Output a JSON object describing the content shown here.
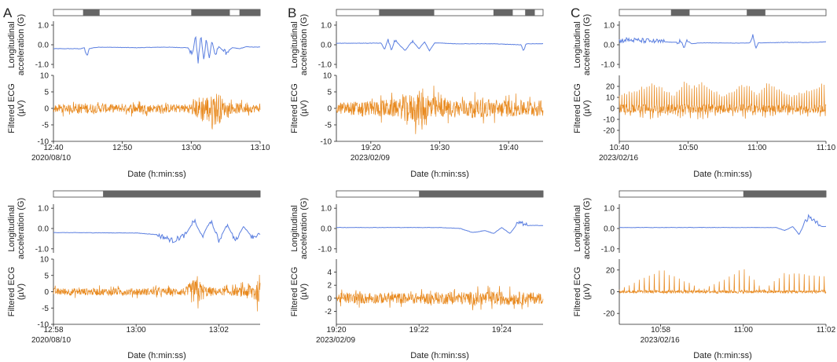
{
  "figure": {
    "panel_labels": [
      "A",
      "B",
      "C"
    ],
    "xlabel": "Date (h:min:ss)",
    "acc_ylabel": [
      "Longitudinal",
      "acceleration (G)"
    ],
    "ecg_ylabel": [
      "Filtered ECG",
      "(µV)"
    ]
  },
  "colors": {
    "acceleration": "#5b7fe0",
    "ecg": "#e8891e",
    "activity_bar": "#666666",
    "axis": "#222222"
  },
  "chart_data": [
    {
      "type": "line",
      "panel": "A",
      "row": "top",
      "title": "",
      "date": "2020/08/10",
      "x_range_min": [
        760,
        790
      ],
      "x_ticks": [
        {
          "value": 760,
          "label": "12:40"
        },
        {
          "value": 770,
          "label": "12:50"
        },
        {
          "value": 780,
          "label": "13:00"
        },
        {
          "value": 790,
          "label": "13:10"
        }
      ],
      "activity_bar": [
        [
          764.3,
          766.7
        ],
        [
          780,
          785.6
        ],
        [
          787,
          790
        ]
      ],
      "acc_ylim": [
        -1.2,
        1.2
      ],
      "acc_yticks": [
        {
          "value": 1,
          "label": "1.0"
        },
        {
          "value": 0,
          "label": "0.0"
        },
        {
          "value": -1,
          "label": "-1.0"
        }
      ],
      "ecg_ylim": [
        -10,
        10
      ],
      "ecg_yticks": [
        {
          "value": 10,
          "label": "10"
        },
        {
          "value": 5,
          "label": "5"
        },
        {
          "value": 0,
          "label": "0"
        },
        {
          "value": -5,
          "label": "-5"
        },
        {
          "value": -10,
          "label": "-10"
        }
      ],
      "series": [
        {
          "name": "Longitudinal acceleration (G)",
          "axis": "acc",
          "x": [
            760,
            764,
            764.5,
            764.8,
            765.2,
            765.8,
            766.8,
            772,
            776,
            779.5,
            780.2,
            780.6,
            781,
            781.4,
            781.8,
            782.2,
            782.6,
            783,
            783.5,
            784,
            785,
            786,
            787,
            788,
            789,
            790
          ],
          "y": [
            -0.2,
            -0.2,
            -0.15,
            -0.65,
            -0.2,
            -0.15,
            -0.12,
            -0.15,
            -0.12,
            -0.15,
            -0.5,
            0.45,
            -0.9,
            0.5,
            -0.8,
            0.3,
            -0.7,
            0.2,
            -0.55,
            -0.1,
            -0.4,
            -0.15,
            -0.2,
            -0.1,
            -0.12,
            -0.12
          ]
        },
        {
          "name": "Filtered ECG (µV)",
          "axis": "ecg",
          "x": [
            760,
            761.5,
            762,
            764.5,
            766,
            768,
            770,
            772,
            774,
            776,
            778,
            780,
            781.5,
            783,
            783.5,
            784,
            785,
            787,
            790
          ],
          "y": [
            -2,
            2.5,
            -2,
            3,
            -2.5,
            2.5,
            -2,
            2.8,
            -2.2,
            2.5,
            -2.3,
            2.8,
            8,
            -7,
            9.8,
            -9,
            3,
            -3,
            2
          ]
        }
      ]
    },
    {
      "type": "line",
      "panel": "A",
      "row": "bottom",
      "title": "",
      "date": "2020/08/10",
      "x_range_min": [
        778,
        783
      ],
      "x_ticks": [
        {
          "value": 778,
          "label": "12:58"
        },
        {
          "value": 780,
          "label": "13:00"
        },
        {
          "value": 782,
          "label": "13:02"
        }
      ],
      "activity_bar": [
        [
          779.2,
          783
        ]
      ],
      "acc_ylim": [
        -1.2,
        1.2
      ],
      "acc_yticks": [
        {
          "value": 1,
          "label": "1.0"
        },
        {
          "value": 0,
          "label": "0.0"
        },
        {
          "value": -1,
          "label": "-1.0"
        }
      ],
      "ecg_ylim": [
        -10,
        10
      ],
      "ecg_yticks": [
        {
          "value": 10,
          "label": "10"
        },
        {
          "value": 5,
          "label": "5"
        },
        {
          "value": 0,
          "label": "0"
        },
        {
          "value": -5,
          "label": "-5"
        },
        {
          "value": -10,
          "label": "-10"
        }
      ],
      "series": [
        {
          "name": "Longitudinal acceleration (G)",
          "axis": "acc",
          "x": [
            778,
            780,
            780.5,
            780.9,
            781.2,
            781.4,
            781.6,
            781.8,
            782,
            782.2,
            782.4,
            782.6,
            782.8,
            783
          ],
          "y": [
            -0.2,
            -0.22,
            -0.3,
            -0.6,
            -0.3,
            0.4,
            -0.4,
            0.4,
            -0.6,
            0.2,
            -0.6,
            0.1,
            -0.4,
            -0.3
          ]
        },
        {
          "name": "Filtered ECG (µV)",
          "axis": "ecg",
          "x": [
            778,
            779,
            780,
            781,
            781.2,
            781.35,
            781.5,
            781.7,
            782,
            782.5,
            782.9,
            783
          ],
          "y": [
            -2,
            2,
            -2,
            2,
            -2.5,
            6.5,
            -7,
            3,
            -2,
            2.5,
            6.5,
            -5.5
          ]
        }
      ]
    },
    {
      "type": "line",
      "panel": "B",
      "row": "top",
      "title": "",
      "date": "2023/02/09",
      "x_range_min": [
        1155,
        1185
      ],
      "x_ticks": [
        {
          "value": 1160,
          "label": "19:20"
        },
        {
          "value": 1170,
          "label": "19:30"
        },
        {
          "value": 1180,
          "label": "19:40"
        }
      ],
      "activity_bar": [
        [
          1161.2,
          1169.2
        ],
        [
          1177.8,
          1180.6
        ],
        [
          1182.4,
          1183.8
        ]
      ],
      "acc_ylim": [
        -1.2,
        1.2
      ],
      "acc_yticks": [
        {
          "value": 1,
          "label": "1.0"
        },
        {
          "value": 0,
          "label": "0.0"
        },
        {
          "value": -1,
          "label": "-1.0"
        }
      ],
      "ecg_ylim": [
        -10,
        10
      ],
      "ecg_yticks": [
        {
          "value": 10,
          "label": "10"
        },
        {
          "value": 5,
          "label": "5"
        },
        {
          "value": 0,
          "label": "0"
        },
        {
          "value": -5,
          "label": "-5"
        },
        {
          "value": -10,
          "label": "-10"
        }
      ],
      "series": [
        {
          "name": "Longitudinal acceleration (G)",
          "axis": "acc",
          "x": [
            1155,
            1161.5,
            1162,
            1162.5,
            1163,
            1163.5,
            1164,
            1165,
            1166,
            1167,
            1167.8,
            1168.5,
            1169.3,
            1172,
            1178,
            1181.8,
            1182.2,
            1182.5,
            1183,
            1185
          ],
          "y": [
            0.08,
            0.08,
            -0.25,
            0.3,
            -0.3,
            0.25,
            0.05,
            -0.3,
            0.2,
            -0.2,
            0.15,
            -0.3,
            0.1,
            0.05,
            0.05,
            0.0,
            -0.35,
            0.05,
            0.05,
            0.05
          ]
        },
        {
          "name": "Filtered ECG (µV)",
          "axis": "ecg",
          "x": [
            1155,
            1158,
            1160,
            1162,
            1164,
            1165.5,
            1166.2,
            1167,
            1168,
            1170,
            1172,
            1175,
            1178,
            1181,
            1185
          ],
          "y": [
            -3,
            4,
            -4,
            5,
            -5,
            8,
            -8,
            9.8,
            -10,
            5,
            -5,
            5,
            -5,
            4.5,
            -4.5
          ]
        }
      ]
    },
    {
      "type": "line",
      "panel": "B",
      "row": "bottom",
      "title": "",
      "date": "2023/02/09",
      "x_range_min": [
        1160,
        1165
      ],
      "x_ticks": [
        {
          "value": 1160,
          "label": "19:20"
        },
        {
          "value": 1162,
          "label": "19:22"
        },
        {
          "value": 1164,
          "label": "19:24"
        }
      ],
      "activity_bar": [
        [
          1162,
          1165
        ]
      ],
      "acc_ylim": [
        -1.2,
        1.2
      ],
      "acc_yticks": [
        {
          "value": 1,
          "label": "1.0"
        },
        {
          "value": 0,
          "label": "0.0"
        },
        {
          "value": -1,
          "label": "-1.0"
        }
      ],
      "ecg_ylim": [
        -4,
        6
      ],
      "ecg_yticks": [
        {
          "value": 4,
          "label": "4"
        },
        {
          "value": 2,
          "label": "2"
        },
        {
          "value": 0,
          "label": "0"
        },
        {
          "value": -2,
          "label": "-2"
        }
      ],
      "series": [
        {
          "name": "Longitudinal acceleration (G)",
          "axis": "acc",
          "x": [
            1160,
            1162.5,
            1163,
            1163.3,
            1163.6,
            1163.8,
            1164,
            1164.2,
            1164.4,
            1164.6,
            1165
          ],
          "y": [
            0.05,
            0.05,
            0.0,
            -0.2,
            -0.1,
            -0.25,
            0.05,
            -0.25,
            0.3,
            0.15,
            0.15
          ]
        },
        {
          "name": "Filtered ECG (µV)",
          "axis": "ecg",
          "x": [
            1160,
            1161,
            1162,
            1163,
            1164,
            1165
          ],
          "y": [
            -1.5,
            1.5,
            -1.5,
            1.8,
            -2,
            1.5
          ]
        }
      ]
    },
    {
      "type": "line",
      "panel": "C",
      "row": "top",
      "title": "",
      "date": "2023/02/16",
      "x_range_min": [
        640,
        670
      ],
      "x_ticks": [
        {
          "value": 640,
          "label": "10:40"
        },
        {
          "value": 650,
          "label": "10:50"
        },
        {
          "value": 660,
          "label": "11:00"
        },
        {
          "value": 670,
          "label": "11:10"
        }
      ],
      "activity_bar": [
        [
          647.5,
          650.2
        ],
        [
          658.5,
          661.2
        ]
      ],
      "acc_ylim": [
        -1.2,
        1.2
      ],
      "acc_yticks": [
        {
          "value": 1,
          "label": "1.0"
        },
        {
          "value": 0,
          "label": "0.0"
        },
        {
          "value": -1,
          "label": "-1.0"
        }
      ],
      "ecg_ylim": [
        -30,
        30
      ],
      "ecg_yticks": [
        {
          "value": 20,
          "label": "20"
        },
        {
          "value": 10,
          "label": "10"
        },
        {
          "value": 0,
          "label": "0"
        },
        {
          "value": -10,
          "label": "-10"
        },
        {
          "value": -20,
          "label": "-20"
        }
      ],
      "series": [
        {
          "name": "Longitudinal acceleration (G)",
          "axis": "acc",
          "x": [
            640,
            641,
            644,
            648,
            649,
            649.4,
            649.8,
            650.5,
            652,
            658,
            659,
            659.4,
            659.8,
            660.2,
            661,
            664,
            668,
            670
          ],
          "y": [
            0.2,
            0.25,
            0.2,
            0.12,
            0.2,
            -0.2,
            0.25,
            0.05,
            0.1,
            0.08,
            0.1,
            0.55,
            -0.2,
            0.1,
            0.1,
            0.12,
            0.12,
            0.15
          ]
        },
        {
          "name": "Filtered ECG (µV)",
          "axis": "ecg",
          "x": [
            640,
            645,
            648,
            649.5,
            650.5,
            652,
            655,
            658.5,
            660,
            661.5,
            665,
            670
          ],
          "y": [
            -12,
            24,
            -12,
            26,
            -20,
            24,
            -12,
            24,
            -12,
            24,
            -12,
            24
          ]
        }
      ]
    },
    {
      "type": "line",
      "panel": "C",
      "row": "bottom",
      "title": "",
      "date": "2023/02/16",
      "x_range_min": [
        657,
        662
      ],
      "x_ticks": [
        {
          "value": 658,
          "label": "10:58"
        },
        {
          "value": 660,
          "label": "11:00"
        },
        {
          "value": 662,
          "label": "11:02"
        }
      ],
      "activity_bar": [
        [
          660,
          662
        ]
      ],
      "acc_ylim": [
        -1.2,
        1.2
      ],
      "acc_yticks": [
        {
          "value": 1,
          "label": "1.0"
        },
        {
          "value": 0,
          "label": "0.0"
        },
        {
          "value": -1,
          "label": "-1.0"
        }
      ],
      "ecg_ylim": [
        -30,
        30
      ],
      "ecg_yticks": [
        {
          "value": 20,
          "label": "20"
        },
        {
          "value": 0,
          "label": "0"
        },
        {
          "value": -20,
          "label": "-20"
        }
      ],
      "series": [
        {
          "name": "Longitudinal acceleration (G)",
          "axis": "acc",
          "x": [
            657,
            660,
            660.8,
            661,
            661.2,
            661.35,
            661.5,
            661.6,
            661.75,
            661.9,
            662
          ],
          "y": [
            0.05,
            0.05,
            0.05,
            -0.1,
            0.1,
            -0.3,
            0.35,
            0.6,
            0.3,
            0.1,
            0.1
          ]
        },
        {
          "name": "Filtered ECG (µV)",
          "axis": "ecg",
          "x": [
            657,
            658,
            659,
            660,
            660.5,
            661,
            662
          ],
          "y": [
            -2,
            22,
            -2,
            22,
            -2,
            18,
            15
          ]
        }
      ]
    }
  ]
}
